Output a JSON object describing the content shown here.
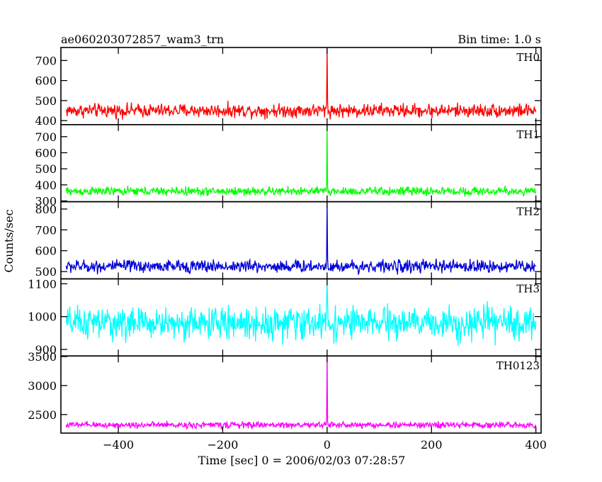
{
  "header": {
    "left_title": "ae060203072857_wam3_trn",
    "right_title": "Bin time: 1.0 s"
  },
  "chart_data": {
    "type": "line",
    "title": "ae060203072857_wam3_trn",
    "subtitle": "Bin time: 1.0 s",
    "xlabel": "Time [sec] 0 = 2006/02/03 07:28:57",
    "ylabel": "Counts/sec",
    "xlim": [
      -510,
      410
    ],
    "x_ticks": [
      -400,
      -200,
      0,
      200,
      400
    ],
    "x_tick_labels": [
      "−400",
      "−200",
      "0",
      "200",
      "400"
    ],
    "x_data_range": [
      -500,
      400
    ],
    "bin_seconds": 1.0,
    "panels": [
      {
        "name": "TH0",
        "color": "#ff0000",
        "ylim": [
          380,
          765
        ],
        "yticks": [
          400,
          500,
          600,
          700
        ],
        "baseline_mean": 450,
        "noise_amplitude": 28,
        "spike": {
          "x": 0,
          "peak": 765
        }
      },
      {
        "name": "TH1",
        "color": "#00ff00",
        "ylim": [
          295,
          775
        ],
        "yticks": [
          300,
          400,
          500,
          600,
          700
        ],
        "baseline_mean": 360,
        "noise_amplitude": 22,
        "spike": {
          "x": 0,
          "peak": 775
        }
      },
      {
        "name": "TH2",
        "color": "#0000d8",
        "ylim": [
          465,
          835
        ],
        "yticks": [
          500,
          600,
          700,
          800
        ],
        "baseline_mean": 525,
        "noise_amplitude": 25,
        "spike": {
          "x": 0,
          "peak": 835
        }
      },
      {
        "name": "TH3",
        "color": "#00ffff",
        "ylim": [
          880,
          1115
        ],
        "yticks": [
          900,
          1000,
          1100
        ],
        "baseline_mean": 980,
        "noise_amplitude": 40,
        "spike": {
          "x": 0,
          "peak": 1115
        }
      },
      {
        "name": "TH0123",
        "color": "#ff00ff",
        "ylim": [
          2180,
          3510
        ],
        "yticks": [
          2500,
          3000,
          3500
        ],
        "baseline_mean": 2320,
        "noise_amplitude": 45,
        "spike": {
          "x": 0,
          "peak": 3510
        }
      }
    ]
  }
}
